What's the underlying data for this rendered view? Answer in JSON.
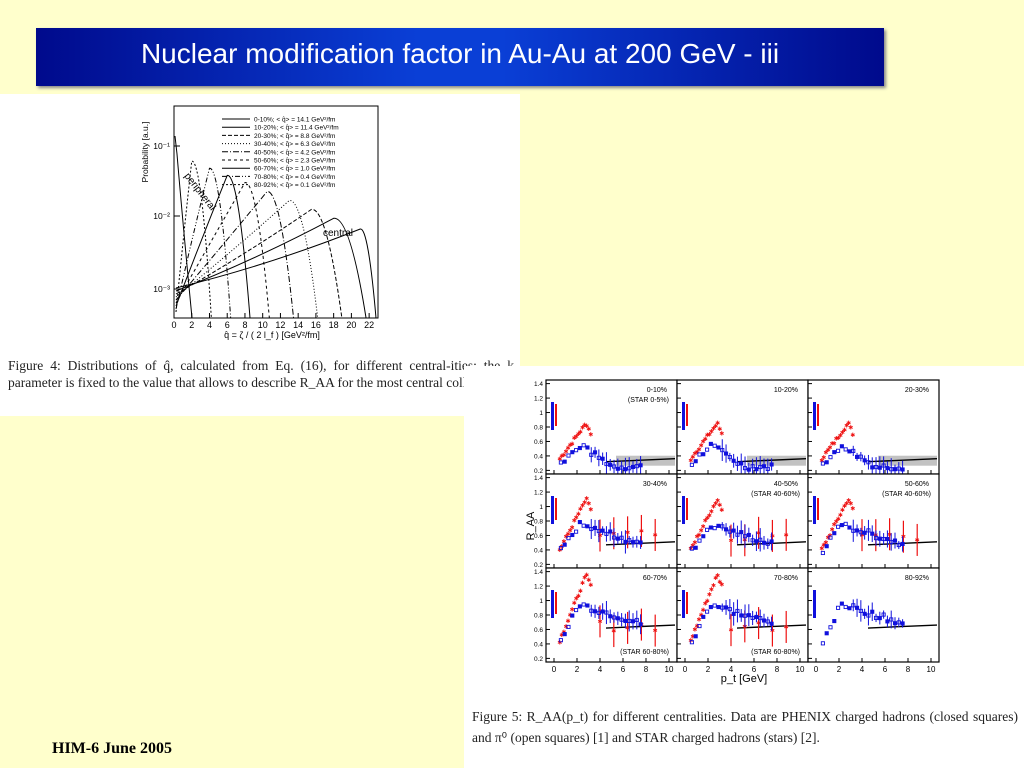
{
  "title": "Nuclear modification factor in Au-Au at 200 GeV - iii",
  "footer": "HIM-6 June 2005",
  "figure4": {
    "caption": "Figure 4:  Distributions of q̂, calculated from Eq. (16), for different central-ities; the k parameter is fixed to the value that allows to describe R_AA for the most central collisions.",
    "ylabel": "Probability [a.u.]",
    "xlabel": "q̂ = ζ / ( 2 l_f )   [GeV²/fm]",
    "annotation_peripheral": "peripheral",
    "annotation_central": "central",
    "xticks": [
      "0",
      "2",
      "4",
      "6",
      "8",
      "10",
      "12",
      "14",
      "16",
      "18",
      "20",
      "22"
    ],
    "yticks": [
      "10⁻¹",
      "10⁻²",
      "10⁻³"
    ],
    "legend": [
      "0-10%;  < q̂> = 14.1 GeV²/fm",
      "10-20%;  < q̂> = 11.4 GeV²/fm",
      "20-30%;  < q̂> = 8.8 GeV²/fm",
      "30-40%;  < q̂> = 6.3 GeV²/fm",
      "40-50%;  < q̂> = 4.2 GeV²/fm",
      "50-60%;  < q̂> = 2.3 GeV²/fm",
      "60-70%;  < q̂> = 1.0 GeV²/fm",
      "70-80%;  < q̂> = 0.4 GeV²/fm",
      "80-92%;  < q̂> = 0.1 GeV²/fm"
    ],
    "curve_peaks": [
      21,
      18,
      15.5,
      13,
      10.5,
      8,
      6,
      4,
      2
    ]
  },
  "figure5": {
    "caption": "Figure 5:  R_AA(p_t) for different centralities.  Data are PHENIX charged hadrons (closed squares) and π⁰ (open squares) [1] and STAR charged hadrons (stars) [2].",
    "ylabel": "R_AA",
    "xlabel": "p_t [GeV]",
    "xticks": [
      "0",
      "2",
      "4",
      "6",
      "8",
      "10"
    ],
    "yticks": [
      "1.4",
      "1.2",
      "1",
      "0.8",
      "0.6",
      "0.4",
      "0.2"
    ],
    "colors": {
      "phenix": "#1010dd",
      "star": "#ee1111",
      "band": "#999999"
    },
    "panels": [
      {
        "label": "0-10%",
        "star_label": "(STAR 0-5%)",
        "star_pos": "top"
      },
      {
        "label": "10-20%",
        "star_label": "",
        "star_pos": "top"
      },
      {
        "label": "20-30%",
        "star_label": "",
        "star_pos": "top"
      },
      {
        "label": "30-40%",
        "star_label": "",
        "star_pos": "top"
      },
      {
        "label": "40-50%",
        "star_label": "(STAR 40-60%)",
        "star_pos": "top"
      },
      {
        "label": "50-60%",
        "star_label": "(STAR 40-60%)",
        "star_pos": "top"
      },
      {
        "label": "60-70%",
        "star_label": "(STAR 60-80%)",
        "star_pos": "bottom"
      },
      {
        "label": "70-80%",
        "star_label": "(STAR 60-80%)",
        "star_pos": "bottom"
      },
      {
        "label": "80-92%",
        "star_label": "",
        "star_pos": "top"
      }
    ]
  }
}
